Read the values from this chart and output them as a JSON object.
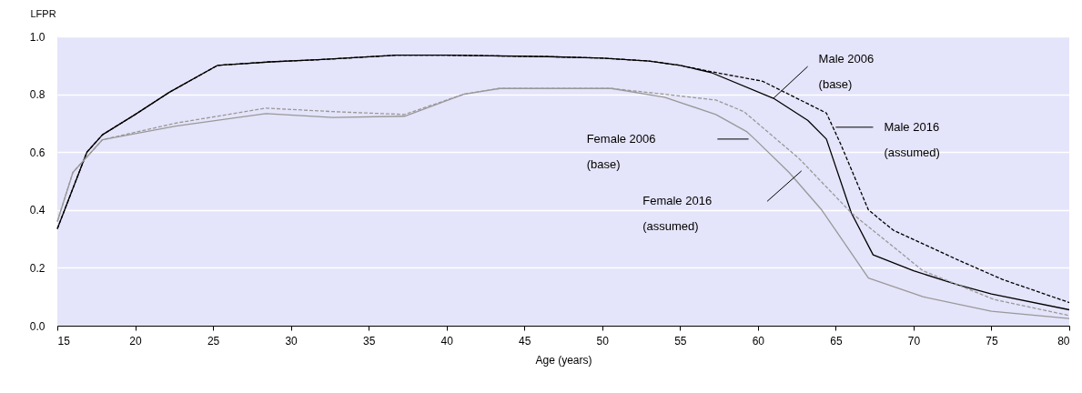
{
  "chart_data": {
    "type": "line",
    "xlabel": "Age (years)",
    "ylabel": "LFPR",
    "xlim": [
      15,
      80
    ],
    "xticks": [
      15,
      20,
      25,
      30,
      35,
      40,
      45,
      50,
      55,
      60,
      65,
      70,
      75,
      80
    ],
    "ylim": [
      0,
      1
    ],
    "yticks": [
      {
        "value": 0,
        "label": "0.0"
      },
      {
        "value": 0.2,
        "label": "0.2"
      },
      {
        "value": 0.4,
        "label": "0.4"
      },
      {
        "value": 0.6,
        "label": "0.6"
      },
      {
        "value": 0.8,
        "label": "0.8"
      },
      {
        "value": 1,
        "label": "1.0"
      }
    ],
    "grid": "y",
    "marker": "none",
    "annotations": [
      "Male 2006 (base)",
      "Male 2016 (assumed)",
      "Female 2006 (base)",
      "Female 2016 (assumed)"
    ],
    "series": [
      {
        "color": "#000000",
        "line_style": "solid",
        "x": [
          15,
          16.9,
          17.9,
          20,
          22.2,
          25.3,
          28.7,
          32,
          36.8,
          40,
          46.5,
          50,
          53,
          55,
          57,
          61,
          63.2,
          64.4,
          66,
          67.4,
          70,
          72.9,
          75,
          80
        ],
        "values": [
          0.335,
          0.6,
          0.66,
          0.73,
          0.807,
          0.9,
          0.912,
          0.92,
          0.935,
          0.935,
          0.93,
          0.925,
          0.915,
          0.9,
          0.875,
          0.786,
          0.71,
          0.645,
          0.39,
          0.245,
          0.19,
          0.14,
          0.11,
          0.055
        ]
      },
      {
        "color": "#000000",
        "line_style": "dashed",
        "x": [
          15,
          16.9,
          17.9,
          20,
          22.2,
          25.3,
          28.7,
          32,
          36.8,
          40,
          46.5,
          50,
          53,
          55,
          56.8,
          60.3,
          64.4,
          65.0,
          65.3,
          67.1,
          68.7,
          72.9,
          75.7,
          80
        ],
        "values": [
          0.335,
          0.6,
          0.66,
          0.73,
          0.807,
          0.9,
          0.912,
          0.92,
          0.935,
          0.935,
          0.93,
          0.925,
          0.915,
          0.9,
          0.88,
          0.845,
          0.735,
          0.665,
          0.63,
          0.4,
          0.33,
          0.226,
          0.16,
          0.08
        ]
      },
      {
        "color": "#999999",
        "line_style": "solid",
        "x": [
          15,
          16,
          17.9,
          22.6,
          28.4,
          32.7,
          37.3,
          41.1,
          43.4,
          46.5,
          50.6,
          54,
          57.3,
          59.3,
          59.8,
          62,
          64.1,
          67.1,
          70.6,
          75,
          80
        ],
        "values": [
          0.36,
          0.53,
          0.643,
          0.69,
          0.733,
          0.72,
          0.724,
          0.8,
          0.82,
          0.82,
          0.82,
          0.79,
          0.73,
          0.67,
          0.645,
          0.53,
          0.4,
          0.165,
          0.1,
          0.05,
          0.025
        ]
      },
      {
        "color": "#999999",
        "line_style": "dashed",
        "x": [
          15,
          16,
          17.9,
          22.6,
          28.4,
          32.7,
          37.3,
          41.1,
          43.4,
          46.5,
          50.6,
          54,
          57.3,
          59.1,
          62.6,
          62.8,
          66,
          70.6,
          75.2,
          80
        ],
        "values": [
          0.36,
          0.53,
          0.643,
          0.7,
          0.752,
          0.74,
          0.73,
          0.8,
          0.82,
          0.82,
          0.82,
          0.8,
          0.78,
          0.74,
          0.58,
          0.569,
          0.39,
          0.19,
          0.09,
          0.035
        ]
      }
    ]
  }
}
